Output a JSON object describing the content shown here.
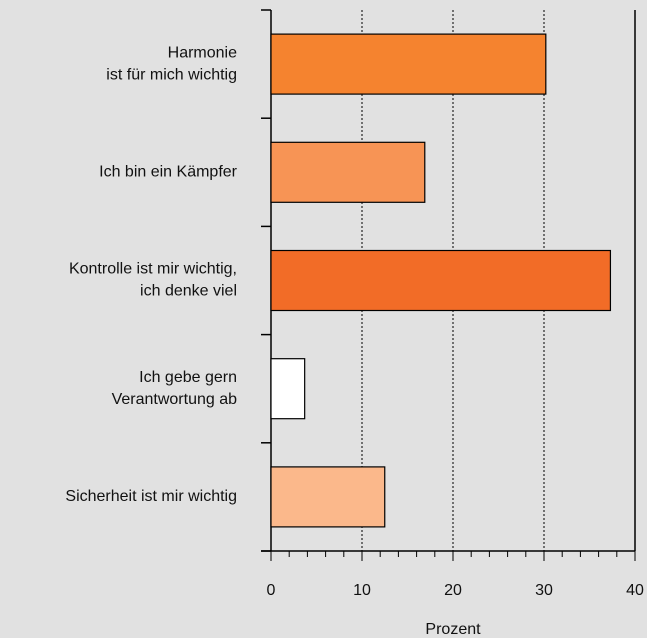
{
  "chart_data": {
    "type": "barh",
    "categories": [
      [
        "Harmonie",
        "ist für mich wichtig"
      ],
      [
        "Ich bin ein Kämpfer"
      ],
      [
        "Kontrolle ist mir wichtig,",
        "ich denke viel"
      ],
      [
        "Ich gebe gern",
        "Verantwortung ab"
      ],
      [
        "Sicherheit ist mir wichtig"
      ]
    ],
    "values": [
      30.2,
      16.9,
      37.3,
      3.7,
      12.5
    ],
    "colors": [
      "#f5832f",
      "#f79455",
      "#f26c27",
      "#ffffff",
      "#fbb88b"
    ],
    "xlim": [
      0,
      40
    ],
    "xticks": [
      0,
      10,
      20,
      30,
      40
    ],
    "xlabel": "Prozent",
    "grid": true
  }
}
